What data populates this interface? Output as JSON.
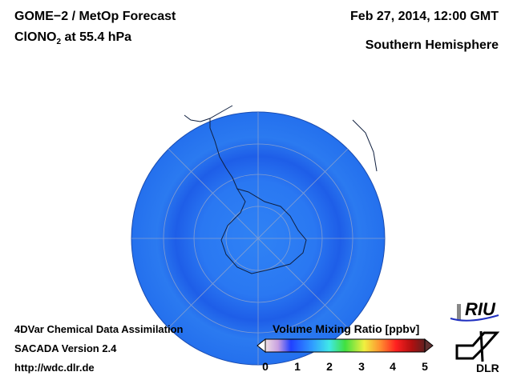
{
  "header": {
    "title": "GOME−2 / MetOp Forecast",
    "species_main": "ClONO",
    "species_sub": "2",
    "species_level": " at 55.4 hPa",
    "datetime": "Feb 27, 2014, 12:00 GMT",
    "region": "Southern Hemisphere"
  },
  "footer": {
    "line1": "4DVar Chemical Data Assimilation",
    "line2": "SACADA Version 2.4",
    "url": "http://wdc.dlr.de"
  },
  "colorbar": {
    "title": "Volume Mixing Ratio [ppbv]",
    "ticks": [
      "0",
      "1",
      "2",
      "3",
      "4",
      "5"
    ],
    "range": [
      0,
      5
    ],
    "colors": [
      "#e8d8e0",
      "#c8a0e0",
      "#7a40e0",
      "#1040ff",
      "#30a0ff",
      "#40e0e0",
      "#40e040",
      "#f0f040",
      "#ff9030",
      "#ff2020",
      "#c01010",
      "#602020"
    ]
  },
  "logos": {
    "riu": "RIU",
    "dlr": "DLR"
  },
  "map": {
    "projection": "orthographic south polar",
    "fill_color": "#2a7af0"
  }
}
